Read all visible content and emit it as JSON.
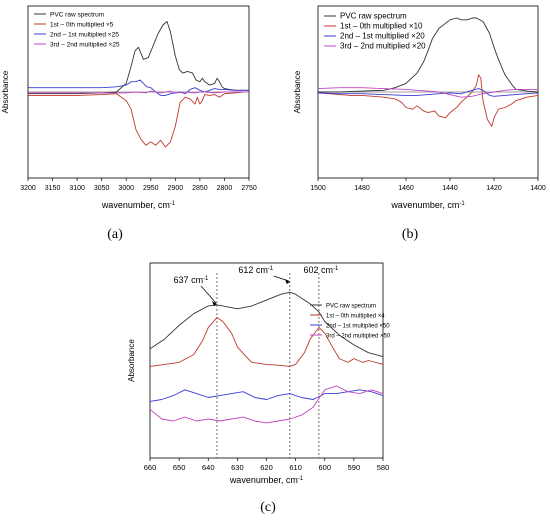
{
  "captions": {
    "a": "(a)",
    "b": "(b)",
    "c": "(c)"
  },
  "chart_data": [
    {
      "id": "a",
      "type": "line",
      "xlabel": "wavenumber, cm",
      "xlabel_sup": "-1",
      "ylabel": "Absorbance",
      "xlim": [
        3200,
        2750
      ],
      "xticks": [
        3200,
        3150,
        3100,
        3050,
        3000,
        2950,
        2900,
        2850,
        2800,
        2750
      ],
      "ylim": [
        -1.0,
        1.0
      ],
      "grid": false,
      "legend_position": "top-left",
      "zero_line": 0.0,
      "series": [
        {
          "name": "PVC raw spectrum",
          "color": "#333333",
          "x": [
            3200,
            3150,
            3100,
            3050,
            3020,
            3000,
            2990,
            2982,
            2975,
            2965,
            2955,
            2945,
            2935,
            2925,
            2917,
            2910,
            2900,
            2892,
            2885,
            2875,
            2865,
            2858,
            2850,
            2845,
            2840,
            2830,
            2820,
            2815,
            2810,
            2805,
            2800,
            2790,
            2775,
            2760,
            2750
          ],
          "y": [
            -0.02,
            -0.02,
            -0.02,
            -0.01,
            0.0,
            0.1,
            0.3,
            0.48,
            0.52,
            0.38,
            0.4,
            0.54,
            0.68,
            0.78,
            0.82,
            0.7,
            0.42,
            0.26,
            0.22,
            0.24,
            0.22,
            0.14,
            0.12,
            0.16,
            0.12,
            0.08,
            0.1,
            0.16,
            0.12,
            0.06,
            0.04,
            0.03,
            0.02,
            0.02,
            0.02
          ]
        },
        {
          "name": "1st – 0th multiplied ×5",
          "color": "#c0392b",
          "x": [
            3200,
            3150,
            3100,
            3050,
            3020,
            3000,
            2990,
            2980,
            2970,
            2960,
            2950,
            2940,
            2930,
            2920,
            2910,
            2900,
            2890,
            2880,
            2870,
            2860,
            2855,
            2850,
            2845,
            2840,
            2830,
            2820,
            2810,
            2800,
            2780,
            2760,
            2750
          ],
          "y": [
            -0.04,
            -0.04,
            -0.04,
            -0.03,
            -0.02,
            -0.1,
            -0.2,
            -0.44,
            -0.55,
            -0.62,
            -0.58,
            -0.62,
            -0.56,
            -0.64,
            -0.58,
            -0.4,
            -0.12,
            -0.06,
            -0.08,
            -0.14,
            -0.06,
            -0.14,
            -0.1,
            -0.03,
            -0.04,
            -0.03,
            -0.06,
            -0.02,
            -0.01,
            0.0,
            0.0
          ]
        },
        {
          "name": "2nd – 1st multiplied ×25",
          "color": "#3b3bd6",
          "x": [
            3200,
            3150,
            3100,
            3050,
            3020,
            3000,
            2990,
            2980,
            2972,
            2965,
            2958,
            2950,
            2940,
            2930,
            2920,
            2910,
            2900,
            2890,
            2880,
            2870,
            2860,
            2850,
            2840,
            2830,
            2820,
            2810,
            2800,
            2780,
            2760,
            2750
          ],
          "y": [
            0.05,
            0.05,
            0.05,
            0.05,
            0.06,
            0.08,
            0.12,
            0.12,
            0.14,
            0.1,
            0.06,
            0.05,
            0.0,
            -0.04,
            -0.04,
            -0.02,
            -0.01,
            0.0,
            -0.02,
            0.03,
            0.05,
            0.02,
            0.0,
            0.02,
            0.04,
            0.03,
            0.03,
            0.02,
            0.02,
            0.02
          ]
        },
        {
          "name": "3rd – 2nd multiplied ×25",
          "color": "#c048c0",
          "x": [
            3200,
            3150,
            3100,
            3050,
            3000,
            2980,
            2960,
            2950,
            2940,
            2930,
            2920,
            2910,
            2900,
            2880,
            2860,
            2850,
            2840,
            2820,
            2800,
            2780,
            2760,
            2750
          ],
          "y": [
            -0.01,
            -0.01,
            -0.01,
            -0.01,
            -0.01,
            0.0,
            -0.01,
            0.01,
            0.0,
            -0.01,
            0.0,
            0.01,
            -0.01,
            0.0,
            -0.01,
            0.0,
            0.0,
            -0.01,
            0.0,
            0.0,
            0.0,
            0.0
          ]
        }
      ]
    },
    {
      "id": "b",
      "type": "line",
      "xlabel": "wavenumber, cm",
      "xlabel_sup": "-1",
      "ylabel": "Absorbance",
      "xlim": [
        1500,
        1400
      ],
      "xticks": [
        1500,
        1480,
        1460,
        1440,
        1420,
        1400
      ],
      "ylim": [
        -1.0,
        1.0
      ],
      "grid": false,
      "legend_position": "top-left",
      "zero_line": 0.0,
      "series": [
        {
          "name": "PVC raw spectrum",
          "color": "#333333",
          "x": [
            1500,
            1490,
            1480,
            1470,
            1465,
            1460,
            1455,
            1452,
            1450,
            1448,
            1445,
            1442,
            1440,
            1437,
            1435,
            1432,
            1430,
            1428,
            1425,
            1422,
            1420,
            1418,
            1415,
            1412,
            1410,
            1405,
            1400
          ],
          "y": [
            0.0,
            0.0,
            0.01,
            0.02,
            0.05,
            0.1,
            0.22,
            0.35,
            0.48,
            0.62,
            0.74,
            0.8,
            0.84,
            0.86,
            0.84,
            0.84,
            0.86,
            0.86,
            0.82,
            0.68,
            0.52,
            0.38,
            0.2,
            0.09,
            0.03,
            0.01,
            0.0
          ]
        },
        {
          "name": "1st – 0th multiplied ×10",
          "color": "#c0392b",
          "x": [
            1500,
            1495,
            1490,
            1485,
            1480,
            1475,
            1470,
            1465,
            1462,
            1460,
            1457,
            1455,
            1452,
            1450,
            1447,
            1445,
            1442,
            1440,
            1437,
            1435,
            1432,
            1430,
            1428,
            1427,
            1426,
            1425,
            1423,
            1421,
            1420,
            1418,
            1415,
            1412,
            1410,
            1405,
            1400
          ],
          "y": [
            -0.01,
            -0.02,
            -0.03,
            -0.04,
            -0.04,
            -0.05,
            -0.06,
            -0.08,
            -0.12,
            -0.18,
            -0.2,
            -0.16,
            -0.22,
            -0.24,
            -0.22,
            -0.28,
            -0.3,
            -0.24,
            -0.18,
            -0.12,
            -0.05,
            0.0,
            0.08,
            0.2,
            0.16,
            -0.1,
            -0.32,
            -0.4,
            -0.3,
            -0.2,
            -0.18,
            -0.14,
            -0.1,
            -0.06,
            -0.04
          ]
        },
        {
          "name": "2nd – 1st multiplied ×20",
          "color": "#3b3bd6",
          "x": [
            1500,
            1490,
            1480,
            1470,
            1460,
            1455,
            1450,
            1445,
            1440,
            1435,
            1430,
            1427,
            1425,
            1422,
            1420,
            1415,
            1410,
            1405,
            1400
          ],
          "y": [
            -0.01,
            -0.02,
            -0.02,
            -0.03,
            -0.04,
            -0.04,
            -0.03,
            -0.02,
            -0.01,
            -0.02,
            0.02,
            0.04,
            0.02,
            -0.04,
            -0.05,
            -0.04,
            -0.03,
            -0.02,
            -0.01
          ]
        },
        {
          "name": "3rd – 2nd multiplied ×20",
          "color": "#c048c0",
          "x": [
            1500,
            1490,
            1480,
            1470,
            1460,
            1455,
            1450,
            1445,
            1440,
            1435,
            1430,
            1425,
            1420,
            1415,
            1410,
            1405,
            1400
          ],
          "y": [
            0.04,
            0.05,
            0.05,
            0.04,
            0.03,
            0.02,
            0.01,
            0.0,
            -0.03,
            -0.06,
            -0.05,
            -0.02,
            0.0,
            0.02,
            0.03,
            0.03,
            0.03
          ]
        }
      ]
    },
    {
      "id": "c",
      "type": "line",
      "xlabel": "wavenumber, cm",
      "xlabel_sup": "-1",
      "ylabel": "Absorbance",
      "xlim": [
        660,
        580
      ],
      "xticks": [
        660,
        650,
        640,
        630,
        620,
        610,
        600,
        590,
        580
      ],
      "ylim": [
        -1.0,
        1.0
      ],
      "grid": false,
      "legend_position": "top-right",
      "markers": [
        637,
        612,
        602
      ],
      "annotations": [
        {
          "text": "637 cm",
          "sup": "-1",
          "x": 637
        },
        {
          "text": "612 cm",
          "sup": "-1",
          "x": 612
        },
        {
          "text": "602 cm",
          "sup": "-1",
          "x": 602
        }
      ],
      "series": [
        {
          "name": "PVC raw spectrum",
          "color": "#333333",
          "x": [
            660,
            655,
            650,
            645,
            640,
            637,
            635,
            630,
            625,
            620,
            615,
            612,
            610,
            605,
            602,
            600,
            595,
            590,
            585,
            580
          ],
          "y": [
            0.12,
            0.22,
            0.36,
            0.48,
            0.56,
            0.57,
            0.56,
            0.53,
            0.56,
            0.62,
            0.68,
            0.7,
            0.68,
            0.58,
            0.5,
            0.4,
            0.26,
            0.16,
            0.08,
            0.04
          ]
        },
        {
          "name": "1st – 0th multiplied ×4",
          "color": "#c0392b",
          "x": [
            660,
            655,
            650,
            645,
            642,
            640,
            637,
            635,
            632,
            630,
            627,
            625,
            620,
            615,
            612,
            610,
            607,
            605,
            602,
            600,
            597,
            595,
            592,
            590,
            587,
            585,
            580
          ],
          "y": [
            -0.06,
            -0.04,
            -0.02,
            0.06,
            0.2,
            0.34,
            0.44,
            0.4,
            0.28,
            0.14,
            0.04,
            -0.02,
            -0.04,
            -0.05,
            -0.06,
            -0.04,
            0.08,
            0.22,
            0.34,
            0.28,
            0.12,
            0.02,
            -0.02,
            0.02,
            -0.02,
            0.0,
            -0.04
          ]
        },
        {
          "name": "2nd – 1st multiplied ×50",
          "color": "#3b3bd6",
          "x": [
            660,
            656,
            652,
            648,
            644,
            640,
            636,
            632,
            628,
            624,
            620,
            616,
            612,
            608,
            604,
            600,
            596,
            592,
            588,
            584,
            580
          ],
          "y": [
            -0.42,
            -0.4,
            -0.36,
            -0.3,
            -0.34,
            -0.38,
            -0.36,
            -0.34,
            -0.32,
            -0.38,
            -0.4,
            -0.36,
            -0.34,
            -0.38,
            -0.4,
            -0.34,
            -0.34,
            -0.32,
            -0.3,
            -0.32,
            -0.36
          ]
        },
        {
          "name": "3rd – 2nd multiplied ×50",
          "color": "#c048c0",
          "x": [
            660,
            656,
            652,
            648,
            644,
            640,
            636,
            632,
            628,
            624,
            620,
            616,
            612,
            608,
            604,
            600,
            596,
            592,
            588,
            584,
            580
          ],
          "y": [
            -0.5,
            -0.6,
            -0.62,
            -0.58,
            -0.62,
            -0.6,
            -0.62,
            -0.6,
            -0.58,
            -0.62,
            -0.64,
            -0.62,
            -0.6,
            -0.56,
            -0.48,
            -0.3,
            -0.26,
            -0.32,
            -0.34,
            -0.3,
            -0.34
          ]
        }
      ]
    }
  ]
}
